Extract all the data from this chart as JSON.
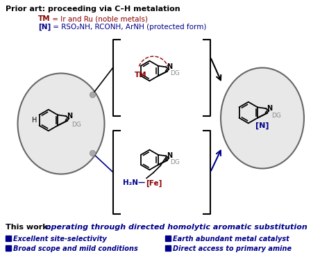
{
  "title_text": "Prior art: proceeding via C–H metalation",
  "line1_tm": "TM",
  "line1_rest": " = Ir and Ru (noble metals)",
  "line2_n": "[N]",
  "line2_rest": " = RSO₂NH, RCONH, ArNH (protected form)",
  "this_work_bold": "This work:",
  "this_work_italic": " operating through directed homolytic aromatic substitution",
  "bullet1": "Excellent site-selectivity",
  "bullet2": "Broad scope and mild conditions",
  "bullet3": "Earth abundant metal catalyst",
  "bullet4": "Direct access to primary amine",
  "color_blue": "#00008B",
  "color_dark_red": "#8B0000",
  "color_black": "#000000",
  "color_gray": "#888888",
  "color_bg": "#ffffff",
  "color_circle_fill": "#e8e8e8",
  "color_circle_edge": "#666666",
  "color_dot": "#aaaaaa"
}
